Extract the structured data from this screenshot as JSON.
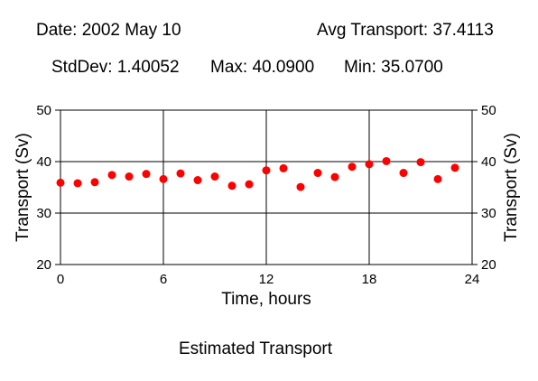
{
  "header": {
    "date": "Date: 2002 May 10",
    "avg": "Avg Transport: 37.4113",
    "stddev": "StdDev: 1.40052",
    "max": "Max: 40.0900",
    "min": "Min: 35.0700"
  },
  "footer": {
    "caption": "Estimated Transport"
  },
  "chart_data": {
    "type": "scatter",
    "xlabel": "Time, hours",
    "ylabel": "Transport (Sv)",
    "xlim": [
      0,
      24
    ],
    "ylim": [
      20,
      50
    ],
    "xticks": [
      0,
      6,
      12,
      18,
      24
    ],
    "yticks": [
      20,
      30,
      40,
      50
    ],
    "grid": true,
    "marker_color": "#ff0000",
    "series": [
      {
        "x": [
          0,
          1,
          2,
          3,
          4,
          5,
          6,
          7,
          8,
          9,
          10,
          11,
          12,
          13,
          14,
          15,
          16,
          17,
          18,
          19,
          20,
          21,
          22,
          23
        ],
        "values": [
          35.9,
          35.8,
          36.0,
          37.4,
          37.1,
          37.6,
          36.6,
          37.7,
          36.4,
          37.1,
          35.3,
          35.6,
          38.3,
          38.7,
          35.07,
          37.8,
          37.0,
          39.0,
          39.5,
          40.09,
          37.8,
          39.9,
          36.6,
          38.8
        ]
      }
    ]
  }
}
